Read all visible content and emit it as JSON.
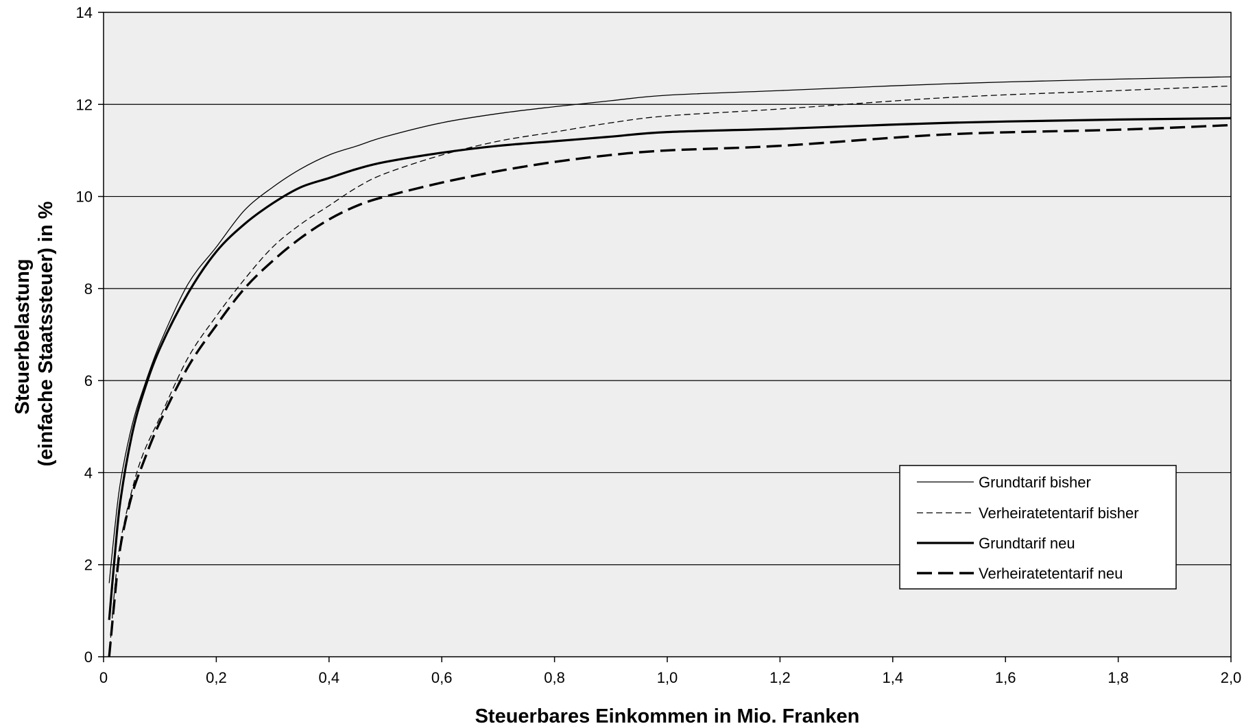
{
  "chart_data": {
    "type": "line",
    "xlabel": "Steuerbares Einkommen in Mio. Franken",
    "ylabel_lines": [
      "Steuerbelastung",
      "(einfache Staatssteuer) in %"
    ],
    "xlim": [
      0,
      2.0
    ],
    "ylim": [
      0,
      14
    ],
    "x_ticks": [
      0,
      0.2,
      0.4,
      0.6,
      0.8,
      1.0,
      1.2,
      1.4,
      1.6,
      1.8,
      2.0
    ],
    "x_tick_labels": [
      "0",
      "0,2",
      "0,4",
      "0,6",
      "0,8",
      "1,0",
      "1,2",
      "1,4",
      "1,6",
      "1,8",
      "2,0"
    ],
    "y_ticks": [
      0,
      2,
      4,
      6,
      8,
      10,
      12,
      14
    ],
    "y_tick_labels": [
      "0",
      "2",
      "4",
      "6",
      "8",
      "10",
      "12",
      "14"
    ],
    "grid": "horizontal",
    "plot_background": "#eeeeee",
    "legend_position": "bottom-right",
    "series": [
      {
        "name": "Grundtarif bisher",
        "style": "thin-solid",
        "x": [
          0.01,
          0.02,
          0.03,
          0.05,
          0.07,
          0.1,
          0.15,
          0.2,
          0.25,
          0.3,
          0.35,
          0.4,
          0.45,
          0.5,
          0.6,
          0.7,
          0.8,
          0.9,
          1.0,
          1.2,
          1.5,
          1.8,
          2.0
        ],
        "y": [
          1.6,
          2.8,
          3.8,
          5.0,
          5.8,
          6.8,
          8.1,
          8.9,
          9.7,
          10.2,
          10.6,
          10.9,
          11.1,
          11.3,
          11.6,
          11.8,
          11.95,
          12.08,
          12.2,
          12.3,
          12.45,
          12.55,
          12.6
        ]
      },
      {
        "name": "Verheiratetentarif bisher",
        "style": "thin-dashed",
        "x": [
          0.01,
          0.02,
          0.03,
          0.05,
          0.07,
          0.1,
          0.15,
          0.2,
          0.25,
          0.3,
          0.35,
          0.4,
          0.45,
          0.5,
          0.6,
          0.7,
          0.8,
          0.9,
          1.0,
          1.2,
          1.5,
          1.8,
          2.0
        ],
        "y": [
          0.0,
          1.5,
          2.5,
          3.6,
          4.4,
          5.2,
          6.5,
          7.4,
          8.2,
          8.9,
          9.4,
          9.8,
          10.2,
          10.5,
          10.9,
          11.2,
          11.4,
          11.6,
          11.75,
          11.9,
          12.15,
          12.3,
          12.4
        ]
      },
      {
        "name": "Grundtarif neu",
        "style": "thick-solid",
        "x": [
          0.01,
          0.02,
          0.03,
          0.05,
          0.07,
          0.1,
          0.15,
          0.2,
          0.25,
          0.3,
          0.35,
          0.4,
          0.45,
          0.5,
          0.6,
          0.7,
          0.8,
          0.9,
          1.0,
          1.2,
          1.5,
          1.8,
          2.0
        ],
        "y": [
          0.8,
          2.2,
          3.4,
          4.8,
          5.7,
          6.7,
          7.9,
          8.8,
          9.4,
          9.85,
          10.2,
          10.4,
          10.6,
          10.75,
          10.95,
          11.1,
          11.2,
          11.3,
          11.4,
          11.47,
          11.6,
          11.67,
          11.7
        ]
      },
      {
        "name": "Verheiratetentarif neu",
        "style": "thick-dashed",
        "x": [
          0.01,
          0.02,
          0.03,
          0.05,
          0.07,
          0.1,
          0.15,
          0.2,
          0.25,
          0.3,
          0.35,
          0.4,
          0.45,
          0.5,
          0.6,
          0.7,
          0.8,
          0.9,
          1.0,
          1.2,
          1.5,
          1.8,
          2.0
        ],
        "y": [
          0.0,
          1.3,
          2.4,
          3.5,
          4.2,
          5.1,
          6.3,
          7.2,
          8.0,
          8.6,
          9.1,
          9.5,
          9.8,
          10.0,
          10.3,
          10.55,
          10.75,
          10.9,
          11.0,
          11.1,
          11.35,
          11.45,
          11.55
        ]
      }
    ]
  }
}
